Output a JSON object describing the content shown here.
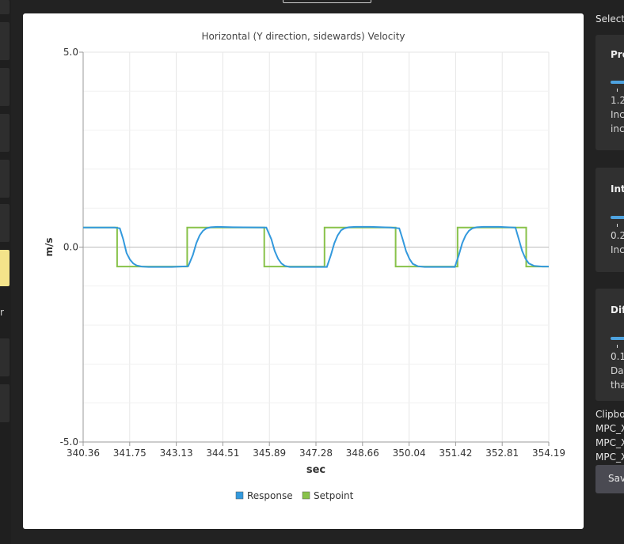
{
  "sidebar": {
    "partial_char": "r"
  },
  "right_panel": {
    "select_label": "Select",
    "cards": [
      {
        "title": "Pro",
        "value": "1.2",
        "desc1": "Inc",
        "desc2": "inc"
      },
      {
        "title": "Int",
        "value": "0.2",
        "desc1": "Inc",
        "desc2": ""
      },
      {
        "title": "Dif",
        "value": "0.1",
        "desc1": "Da",
        "desc2": "tha"
      }
    ],
    "clipboard_label": "Clipbo",
    "params": [
      "MPC_X",
      "MPC_X",
      "MPC_X"
    ],
    "save_label": "Sav"
  },
  "colors": {
    "response": "#3399dd",
    "setpoint": "#88c24a",
    "grid": "#e6e6e6"
  },
  "chart_data": {
    "type": "line",
    "title": "Horizontal (Y direction, sidewards) Velocity",
    "xlabel": "sec",
    "ylabel": "m/s",
    "xlim": [
      340.36,
      354.19
    ],
    "ylim": [
      -5.0,
      5.0
    ],
    "xticks": [
      "340.36",
      "341.75",
      "343.13",
      "344.51",
      "345.89",
      "347.28",
      "348.66",
      "350.04",
      "351.42",
      "352.81",
      "354.19"
    ],
    "yticks": [
      "5.0",
      "0.0",
      "-5.0"
    ],
    "grid": true,
    "legend_position": "bottom",
    "series": [
      {
        "name": "Response",
        "color": "#3399dd",
        "x": [
          340.36,
          341.3,
          341.45,
          341.55,
          341.65,
          341.75,
          341.85,
          341.95,
          342.1,
          342.3,
          343.0,
          343.48,
          343.62,
          343.72,
          343.82,
          343.92,
          344.02,
          344.15,
          344.35,
          344.8,
          345.8,
          345.95,
          346.05,
          346.15,
          346.25,
          346.35,
          346.5,
          346.7,
          347.6,
          347.72,
          347.82,
          347.92,
          348.02,
          348.12,
          348.25,
          348.45,
          348.9,
          349.5,
          349.75,
          349.85,
          349.95,
          350.05,
          350.15,
          350.3,
          350.5,
          351.4,
          351.52,
          351.62,
          351.72,
          351.82,
          351.92,
          352.05,
          352.25,
          352.7,
          353.2,
          353.3,
          353.4,
          353.5,
          353.6,
          353.75,
          354.0,
          354.19
        ],
        "y": [
          0.5,
          0.5,
          0.48,
          0.2,
          -0.15,
          -0.32,
          -0.42,
          -0.47,
          -0.5,
          -0.51,
          -0.51,
          -0.49,
          -0.2,
          0.1,
          0.3,
          0.42,
          0.48,
          0.51,
          0.52,
          0.51,
          0.5,
          0.2,
          -0.1,
          -0.3,
          -0.42,
          -0.48,
          -0.51,
          -0.51,
          -0.51,
          -0.2,
          0.1,
          0.3,
          0.43,
          0.48,
          0.51,
          0.52,
          0.52,
          0.5,
          0.48,
          0.2,
          -0.1,
          -0.3,
          -0.43,
          -0.49,
          -0.51,
          -0.51,
          -0.2,
          0.1,
          0.3,
          0.42,
          0.48,
          0.51,
          0.52,
          0.52,
          0.5,
          0.2,
          -0.1,
          -0.3,
          -0.42,
          -0.48,
          -0.5,
          -0.5
        ]
      },
      {
        "name": "Setpoint",
        "color": "#88c24a",
        "x": [
          340.36,
          341.37,
          341.37,
          343.45,
          343.45,
          345.74,
          345.74,
          347.53,
          347.53,
          349.64,
          349.64,
          351.48,
          351.48,
          353.52,
          353.52,
          354.19
        ],
        "y": [
          0.5,
          0.5,
          -0.5,
          -0.5,
          0.5,
          0.5,
          -0.5,
          -0.5,
          0.5,
          0.5,
          -0.5,
          -0.5,
          0.5,
          0.5,
          -0.5,
          -0.5
        ]
      }
    ]
  }
}
